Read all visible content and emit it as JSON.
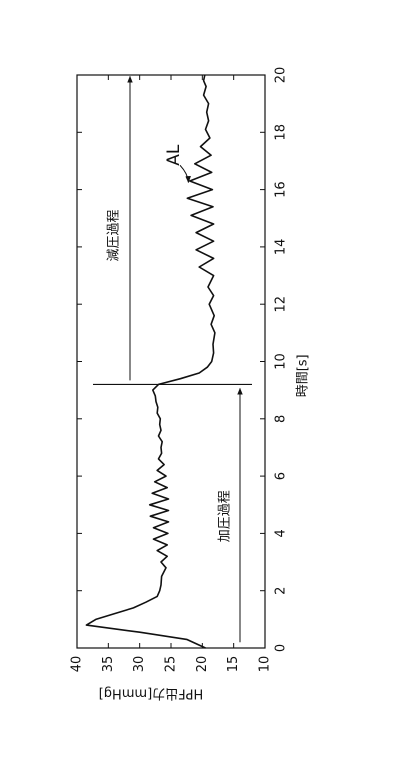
{
  "chart_data": {
    "type": "line",
    "orientation": "rotated-90-ccw",
    "title": "",
    "xlabel": "時間[s]",
    "ylabel": "HPF出力[mmHg]",
    "xlim": [
      0,
      20
    ],
    "ylim": [
      10,
      40
    ],
    "xticks": [
      0,
      2,
      4,
      6,
      8,
      10,
      12,
      14,
      16,
      18,
      20
    ],
    "yticks": [
      10,
      15,
      20,
      25,
      30,
      35,
      40
    ],
    "grid": false,
    "legend": "none",
    "series": [
      {
        "color": "#111111",
        "x": [
          0.0,
          0.3,
          0.55,
          0.8,
          1.0,
          1.2,
          1.4,
          1.6,
          1.8,
          2.0,
          2.2,
          2.5,
          2.8,
          3.0,
          3.2,
          3.4,
          3.6,
          3.8,
          4.0,
          4.2,
          4.4,
          4.6,
          4.8,
          5.0,
          5.2,
          5.4,
          5.6,
          5.8,
          6.0,
          6.2,
          6.4,
          6.6,
          6.8,
          7.0,
          7.2,
          7.4,
          7.6,
          7.8,
          8.0,
          8.2,
          8.4,
          8.6,
          8.8,
          9.0,
          9.2,
          9.4,
          9.6,
          9.8,
          10.0,
          10.3,
          10.6,
          11.0,
          11.3,
          11.6,
          12.0,
          12.3,
          12.6,
          13.0,
          13.3,
          13.6,
          13.9,
          14.2,
          14.5,
          14.8,
          15.1,
          15.4,
          15.7,
          16.0,
          16.3,
          16.6,
          16.9,
          17.2,
          17.5,
          17.8,
          18.1,
          18.4,
          18.7,
          19.0,
          19.3,
          19.6,
          19.8,
          20.0
        ],
        "y": [
          19.5,
          22.5,
          30.0,
          38.5,
          37.0,
          34.0,
          31.0,
          29.0,
          27.2,
          26.8,
          26.6,
          26.5,
          25.8,
          26.6,
          25.6,
          27.2,
          25.6,
          27.8,
          25.5,
          27.8,
          25.4,
          28.3,
          25.4,
          28.4,
          25.4,
          28.0,
          25.6,
          27.6,
          25.8,
          27.2,
          26.1,
          27.0,
          26.5,
          26.6,
          26.4,
          27.0,
          26.6,
          26.8,
          26.7,
          27.2,
          27.1,
          27.4,
          27.5,
          27.9,
          27.0,
          23.5,
          20.5,
          19.2,
          18.5,
          18.2,
          18.3,
          18.0,
          18.6,
          18.1,
          18.9,
          18.2,
          19.1,
          18.2,
          20.5,
          18.2,
          21.0,
          18.2,
          21.0,
          18.2,
          21.8,
          18.3,
          22.4,
          18.4,
          22.0,
          18.5,
          21.2,
          18.6,
          20.3,
          18.8,
          19.5,
          19.0,
          19.3,
          19.0,
          19.8,
          19.4,
          19.8,
          19.6
        ]
      }
    ],
    "annotations": [
      {
        "id": "pressurization",
        "text": "加圧過程"
      },
      {
        "id": "depressurization",
        "text": "減圧過程"
      },
      {
        "id": "al",
        "text": "AL"
      }
    ]
  }
}
